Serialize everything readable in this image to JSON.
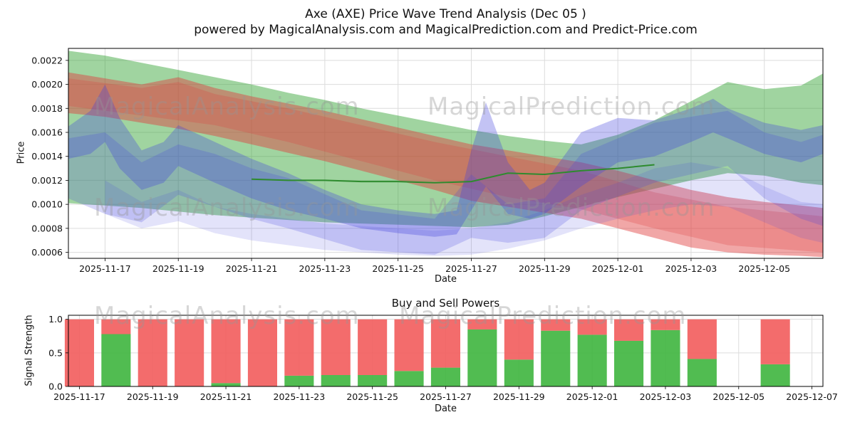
{
  "header": {
    "title": "Axe (AXE) Price Wave Trend Analysis (Dec 05 )",
    "subtitle": "powered by MagicalAnalysis.com and MagicalPrediction.com and Predict-Price.com"
  },
  "watermarks": {
    "analysis": "MagicalAnalysis.com",
    "prediction": "MagicalPrediction.com"
  },
  "chart_data": [
    {
      "type": "area",
      "title": "",
      "xlabel": "Date",
      "ylabel": "Price",
      "x_unit_note": "x values are day offsets from 2025-11-16",
      "xlim": [
        0,
        20.6
      ],
      "ylim": [
        0.00055,
        0.0023
      ],
      "grid": true,
      "y_ticks": [
        0.0006,
        0.0008,
        0.001,
        0.0012,
        0.0014,
        0.0016,
        0.0018,
        0.002,
        0.0022
      ],
      "x_ticks": [
        {
          "d": 1,
          "label": "2025-11-17"
        },
        {
          "d": 3,
          "label": "2025-11-19"
        },
        {
          "d": 5,
          "label": "2025-11-21"
        },
        {
          "d": 7,
          "label": "2025-11-23"
        },
        {
          "d": 9,
          "label": "2025-11-25"
        },
        {
          "d": 11,
          "label": "2025-11-27"
        },
        {
          "d": 13,
          "label": "2025-11-29"
        },
        {
          "d": 15,
          "label": "2025-12-01"
        },
        {
          "d": 17,
          "label": "2025-12-03"
        },
        {
          "d": 19,
          "label": "2025-12-05"
        }
      ],
      "bands": [
        {
          "name": "green-forecast-band",
          "color": "#2ca02c",
          "opacity": 0.45,
          "x": [
            0,
            1,
            2,
            3,
            4,
            5,
            6,
            7,
            8,
            9,
            10,
            11,
            12,
            13,
            14,
            15,
            16,
            17,
            18,
            19,
            20,
            20.6
          ],
          "upper": [
            0.00228,
            0.00224,
            0.00218,
            0.00212,
            0.00206,
            0.002,
            0.00193,
            0.00187,
            0.0018,
            0.00174,
            0.00168,
            0.00162,
            0.00157,
            0.00153,
            0.0015,
            0.00158,
            0.0017,
            0.00186,
            0.00202,
            0.00196,
            0.00199,
            0.00209
          ],
          "lower": [
            0.00101,
            0.00099,
            0.00097,
            0.00094,
            0.00091,
            0.00089,
            0.00087,
            0.00085,
            0.00084,
            0.00083,
            0.00082,
            0.00081,
            0.00083,
            0.0009,
            0.00098,
            0.00106,
            0.00113,
            0.0012,
            0.00126,
            0.00124,
            0.00118,
            0.00116
          ]
        },
        {
          "name": "red-trend-band-outer",
          "color": "#e03c3c",
          "opacity": 0.45,
          "x": [
            0,
            1,
            2,
            3,
            4,
            5,
            6,
            7,
            8,
            9,
            10,
            11,
            12,
            13,
            14,
            15,
            16,
            17,
            18,
            19,
            20,
            20.6
          ],
          "upper": [
            0.0021,
            0.00205,
            0.002,
            0.00206,
            0.00197,
            0.0019,
            0.00184,
            0.00178,
            0.00171,
            0.00164,
            0.00157,
            0.0015,
            0.00145,
            0.0014,
            0.00135,
            0.00128,
            0.0012,
            0.00112,
            0.00106,
            0.00102,
            0.00099,
            0.00097
          ],
          "lower": [
            0.00176,
            0.00173,
            0.00168,
            0.00163,
            0.00157,
            0.0015,
            0.00143,
            0.00136,
            0.00128,
            0.0012,
            0.00112,
            0.00103,
            0.00098,
            0.00093,
            0.00088,
            0.0008,
            0.00072,
            0.00064,
            0.0006,
            0.00058,
            0.00057,
            0.00056
          ]
        },
        {
          "name": "red-trend-band-inner",
          "color": "#e03c3c",
          "opacity": 0.25,
          "x": [
            0,
            2,
            3,
            4,
            6,
            8,
            10,
            12,
            14,
            16,
            18,
            20.6
          ],
          "upper": [
            0.00205,
            0.00197,
            0.00202,
            0.00192,
            0.0018,
            0.00166,
            0.00152,
            0.0014,
            0.00128,
            0.0011,
            0.00098,
            0.0009
          ],
          "lower": [
            0.00182,
            0.00174,
            0.0017,
            0.00166,
            0.00152,
            0.00136,
            0.0012,
            0.00106,
            0.00096,
            0.0008,
            0.00066,
            0.0006
          ]
        },
        {
          "name": "blue-wave-band-primary",
          "color": "#4444dd",
          "opacity": 0.32,
          "x": [
            0,
            0.6,
            1,
            1.4,
            2,
            2.6,
            3,
            4,
            5,
            6,
            7,
            8,
            9,
            10,
            10.6,
            11,
            11.4,
            12,
            12.6,
            13,
            14,
            15,
            16,
            17,
            17.6,
            18,
            19,
            20,
            20.6
          ],
          "upper": [
            0.00165,
            0.00178,
            0.002,
            0.00172,
            0.00145,
            0.00152,
            0.00166,
            0.00152,
            0.00138,
            0.00126,
            0.00112,
            0.001,
            0.00095,
            0.00092,
            0.00095,
            0.00145,
            0.00185,
            0.00135,
            0.00112,
            0.00118,
            0.0016,
            0.00172,
            0.0017,
            0.0018,
            0.00188,
            0.0018,
            0.00168,
            0.00162,
            0.00166
          ],
          "lower": [
            0.00138,
            0.00142,
            0.00152,
            0.0013,
            0.00112,
            0.00118,
            0.00132,
            0.00118,
            0.00105,
            0.00095,
            0.00088,
            0.0008,
            0.00076,
            0.00073,
            0.00075,
            0.00095,
            0.00115,
            0.00092,
            0.00088,
            0.00092,
            0.00115,
            0.00135,
            0.0014,
            0.00152,
            0.0016,
            0.00155,
            0.00142,
            0.00135,
            0.00142
          ]
        },
        {
          "name": "blue-wave-band-secondary",
          "color": "#4444dd",
          "opacity": 0.22,
          "x": [
            0,
            1,
            2,
            3,
            4,
            5,
            6,
            8,
            10,
            11,
            12,
            13,
            14,
            16,
            18,
            19,
            20,
            20.6
          ],
          "upper": [
            0.00155,
            0.0016,
            0.00135,
            0.0015,
            0.00142,
            0.0013,
            0.00122,
            0.00095,
            0.00088,
            0.00125,
            0.001,
            0.00105,
            0.00142,
            0.00168,
            0.00178,
            0.0016,
            0.00152,
            0.00158
          ],
          "lower": [
            0.00105,
            0.00092,
            0.00085,
            0.00108,
            0.00098,
            0.00088,
            0.0008,
            0.00062,
            0.00058,
            0.00072,
            0.00068,
            0.00072,
            0.00095,
            0.00118,
            0.00132,
            0.00105,
            0.00088,
            0.00082
          ]
        },
        {
          "name": "blue-wave-band-low",
          "color": "#4444dd",
          "opacity": 0.15,
          "x": [
            1,
            2,
            3,
            4,
            5,
            6,
            7,
            8,
            9,
            10,
            11,
            12,
            13,
            14,
            15,
            16,
            17,
            18,
            19,
            20,
            20.6
          ],
          "upper": [
            0.0012,
            0.00102,
            0.00112,
            0.00098,
            0.00092,
            0.00088,
            0.00084,
            0.00082,
            0.0008,
            0.00078,
            0.0008,
            0.00085,
            0.00095,
            0.00108,
            0.00118,
            0.0013,
            0.00135,
            0.0013,
            0.00115,
            0.00102,
            0.001
          ],
          "lower": [
            0.00092,
            0.0008,
            0.00086,
            0.00076,
            0.0007,
            0.00066,
            0.00062,
            0.0006,
            0.00058,
            0.00057,
            0.00058,
            0.00063,
            0.0007,
            0.0008,
            0.00088,
            0.00095,
            0.001,
            0.00098,
            0.00085,
            0.00072,
            0.00068
          ]
        }
      ],
      "lines": [
        {
          "name": "mid-trend-line",
          "color": "#2e8b2e",
          "width": 2,
          "x": [
            5,
            6,
            7,
            8,
            9,
            10,
            11,
            12,
            13,
            14,
            15,
            16
          ],
          "y": [
            0.00121,
            0.0012,
            0.0012,
            0.00119,
            0.00119,
            0.00118,
            0.00119,
            0.00126,
            0.00125,
            0.00128,
            0.0013,
            0.00133
          ]
        }
      ]
    },
    {
      "type": "bar",
      "title": "Buy and Sell Powers",
      "xlabel": "Date",
      "ylabel": "Signal Strength",
      "x_unit_note": "x values are day offsets from 2025-11-16",
      "xlim": [
        0.7,
        21.3
      ],
      "ylim": [
        0,
        1.06
      ],
      "grid": true,
      "y_ticks": [
        0.0,
        0.5,
        1.0
      ],
      "x_ticks": [
        {
          "d": 1,
          "label": "2025-11-17"
        },
        {
          "d": 3,
          "label": "2025-11-19"
        },
        {
          "d": 5,
          "label": "2025-11-21"
        },
        {
          "d": 7,
          "label": "2025-11-23"
        },
        {
          "d": 9,
          "label": "2025-11-25"
        },
        {
          "d": 11,
          "label": "2025-11-27"
        },
        {
          "d": 13,
          "label": "2025-11-29"
        },
        {
          "d": 15,
          "label": "2025-12-01"
        },
        {
          "d": 17,
          "label": "2025-12-03"
        },
        {
          "d": 19,
          "label": "2025-12-05"
        },
        {
          "d": 21,
          "label": "2025-12-07"
        }
      ],
      "bar_width_days": 0.8,
      "series": [
        {
          "name": "buy-power",
          "color": "#3eb53e"
        },
        {
          "name": "sell-power",
          "color": "#f25c5c"
        }
      ],
      "bars": [
        {
          "d": 1,
          "date": "2025-11-17",
          "buy": 0.0,
          "sell": 1.0
        },
        {
          "d": 2,
          "date": "2025-11-18",
          "buy": 0.78,
          "sell": 0.22
        },
        {
          "d": 3,
          "date": "2025-11-19",
          "buy": 0.0,
          "sell": 1.0
        },
        {
          "d": 4,
          "date": "2025-11-20",
          "buy": 0.0,
          "sell": 1.0
        },
        {
          "d": 5,
          "date": "2025-11-21",
          "buy": 0.05,
          "sell": 0.95
        },
        {
          "d": 6,
          "date": "2025-11-22",
          "buy": 0.0,
          "sell": 1.0
        },
        {
          "d": 7,
          "date": "2025-11-23",
          "buy": 0.16,
          "sell": 0.84
        },
        {
          "d": 8,
          "date": "2025-11-24",
          "buy": 0.17,
          "sell": 0.83
        },
        {
          "d": 9,
          "date": "2025-11-25",
          "buy": 0.17,
          "sell": 0.83
        },
        {
          "d": 10,
          "date": "2025-11-26",
          "buy": 0.23,
          "sell": 0.77
        },
        {
          "d": 11,
          "date": "2025-11-27",
          "buy": 0.28,
          "sell": 0.72
        },
        {
          "d": 12,
          "date": "2025-11-28",
          "buy": 0.85,
          "sell": 0.15
        },
        {
          "d": 13,
          "date": "2025-11-29",
          "buy": 0.4,
          "sell": 0.6
        },
        {
          "d": 14,
          "date": "2025-11-30",
          "buy": 0.83,
          "sell": 0.17
        },
        {
          "d": 15,
          "date": "2025-12-01",
          "buy": 0.77,
          "sell": 0.23
        },
        {
          "d": 16,
          "date": "2025-12-02",
          "buy": 0.68,
          "sell": 0.32
        },
        {
          "d": 17,
          "date": "2025-12-03",
          "buy": 0.84,
          "sell": 0.16
        },
        {
          "d": 18,
          "date": "2025-12-04",
          "buy": 0.41,
          "sell": 0.59
        },
        {
          "d": 20,
          "date": "2025-12-06",
          "buy": 0.33,
          "sell": 0.67
        }
      ]
    }
  ]
}
